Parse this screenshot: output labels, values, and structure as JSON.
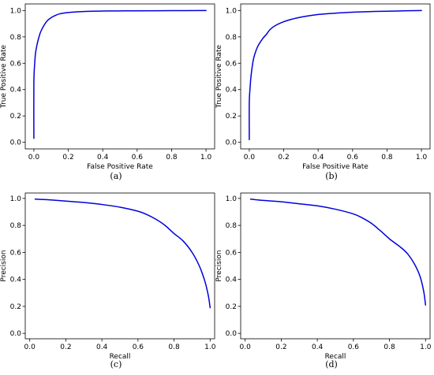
{
  "chart_data": [
    {
      "type": "line",
      "caption": "(a)",
      "xlabel": "False Positive Rate",
      "ylabel": "True Positive Rate",
      "xlim": [
        -0.05,
        1.05
      ],
      "ylim": [
        -0.05,
        1.05
      ],
      "xticks": [
        "0.0",
        "0.2",
        "0.4",
        "0.6",
        "0.8",
        "1.0"
      ],
      "yticks": [
        "0.0",
        "0.2",
        "0.4",
        "0.6",
        "0.8",
        "1.0"
      ],
      "grid": false,
      "color": "#0000dd",
      "x": [
        0.0,
        0.0,
        0.005,
        0.01,
        0.02,
        0.03,
        0.04,
        0.06,
        0.08,
        0.1,
        0.12,
        0.15,
        0.2,
        0.25,
        0.3,
        0.4,
        0.5,
        0.6,
        0.8,
        1.0
      ],
      "y": [
        0.03,
        0.45,
        0.6,
        0.68,
        0.75,
        0.8,
        0.84,
        0.89,
        0.925,
        0.945,
        0.96,
        0.975,
        0.985,
        0.99,
        0.993,
        0.996,
        0.997,
        0.998,
        0.999,
        1.0
      ]
    },
    {
      "type": "line",
      "caption": "(b)",
      "xlabel": "False Positive Rate",
      "ylabel": "True Positive Rate",
      "xlim": [
        -0.05,
        1.05
      ],
      "ylim": [
        -0.05,
        1.05
      ],
      "xticks": [
        "0.0",
        "0.2",
        "0.4",
        "0.6",
        "0.8",
        "1.0"
      ],
      "yticks": [
        "0.0",
        "0.2",
        "0.4",
        "0.6",
        "0.8",
        "1.0"
      ],
      "grid": false,
      "color": "#0000dd",
      "x": [
        0.0,
        0.0,
        0.005,
        0.01,
        0.02,
        0.03,
        0.05,
        0.08,
        0.1,
        0.12,
        0.15,
        0.2,
        0.25,
        0.3,
        0.4,
        0.5,
        0.6,
        0.7,
        0.8,
        1.0
      ],
      "y": [
        0.02,
        0.3,
        0.42,
        0.5,
        0.6,
        0.66,
        0.73,
        0.79,
        0.82,
        0.855,
        0.885,
        0.915,
        0.935,
        0.95,
        0.97,
        0.98,
        0.987,
        0.992,
        0.995,
        1.0
      ]
    },
    {
      "type": "line",
      "caption": "(c)",
      "xlabel": "Recall",
      "ylabel": "Precision",
      "xlim": [
        -0.025,
        1.025
      ],
      "ylim": [
        -0.04,
        1.04
      ],
      "xticks": [
        "0.0",
        "0.2",
        "0.4",
        "0.6",
        "0.8",
        "1.0"
      ],
      "yticks": [
        "0.0",
        "0.2",
        "0.4",
        "0.6",
        "0.8",
        "1.0"
      ],
      "grid": false,
      "color": "#0000dd",
      "x": [
        0.03,
        0.1,
        0.2,
        0.3,
        0.4,
        0.5,
        0.6,
        0.65,
        0.7,
        0.75,
        0.8,
        0.85,
        0.9,
        0.94,
        0.97,
        0.99,
        1.0
      ],
      "y": [
        0.995,
        0.99,
        0.98,
        0.97,
        0.955,
        0.935,
        0.905,
        0.88,
        0.845,
        0.8,
        0.74,
        0.685,
        0.6,
        0.5,
        0.39,
        0.28,
        0.19
      ]
    },
    {
      "type": "line",
      "caption": "(d)",
      "xlabel": "Recall",
      "ylabel": "Precision",
      "xlim": [
        -0.025,
        1.025
      ],
      "ylim": [
        -0.04,
        1.04
      ],
      "xticks": [
        "0.0",
        "0.2",
        "0.4",
        "0.6",
        "0.8",
        "1.0"
      ],
      "yticks": [
        "0.0",
        "0.2",
        "0.4",
        "0.6",
        "0.8",
        "1.0"
      ],
      "grid": false,
      "color": "#0000dd",
      "x": [
        0.03,
        0.1,
        0.2,
        0.3,
        0.4,
        0.5,
        0.6,
        0.65,
        0.7,
        0.75,
        0.8,
        0.83,
        0.86,
        0.9,
        0.94,
        0.97,
        0.99,
        1.0
      ],
      "y": [
        0.995,
        0.985,
        0.975,
        0.96,
        0.945,
        0.92,
        0.885,
        0.855,
        0.815,
        0.76,
        0.7,
        0.67,
        0.64,
        0.59,
        0.51,
        0.42,
        0.31,
        0.21
      ]
    }
  ]
}
